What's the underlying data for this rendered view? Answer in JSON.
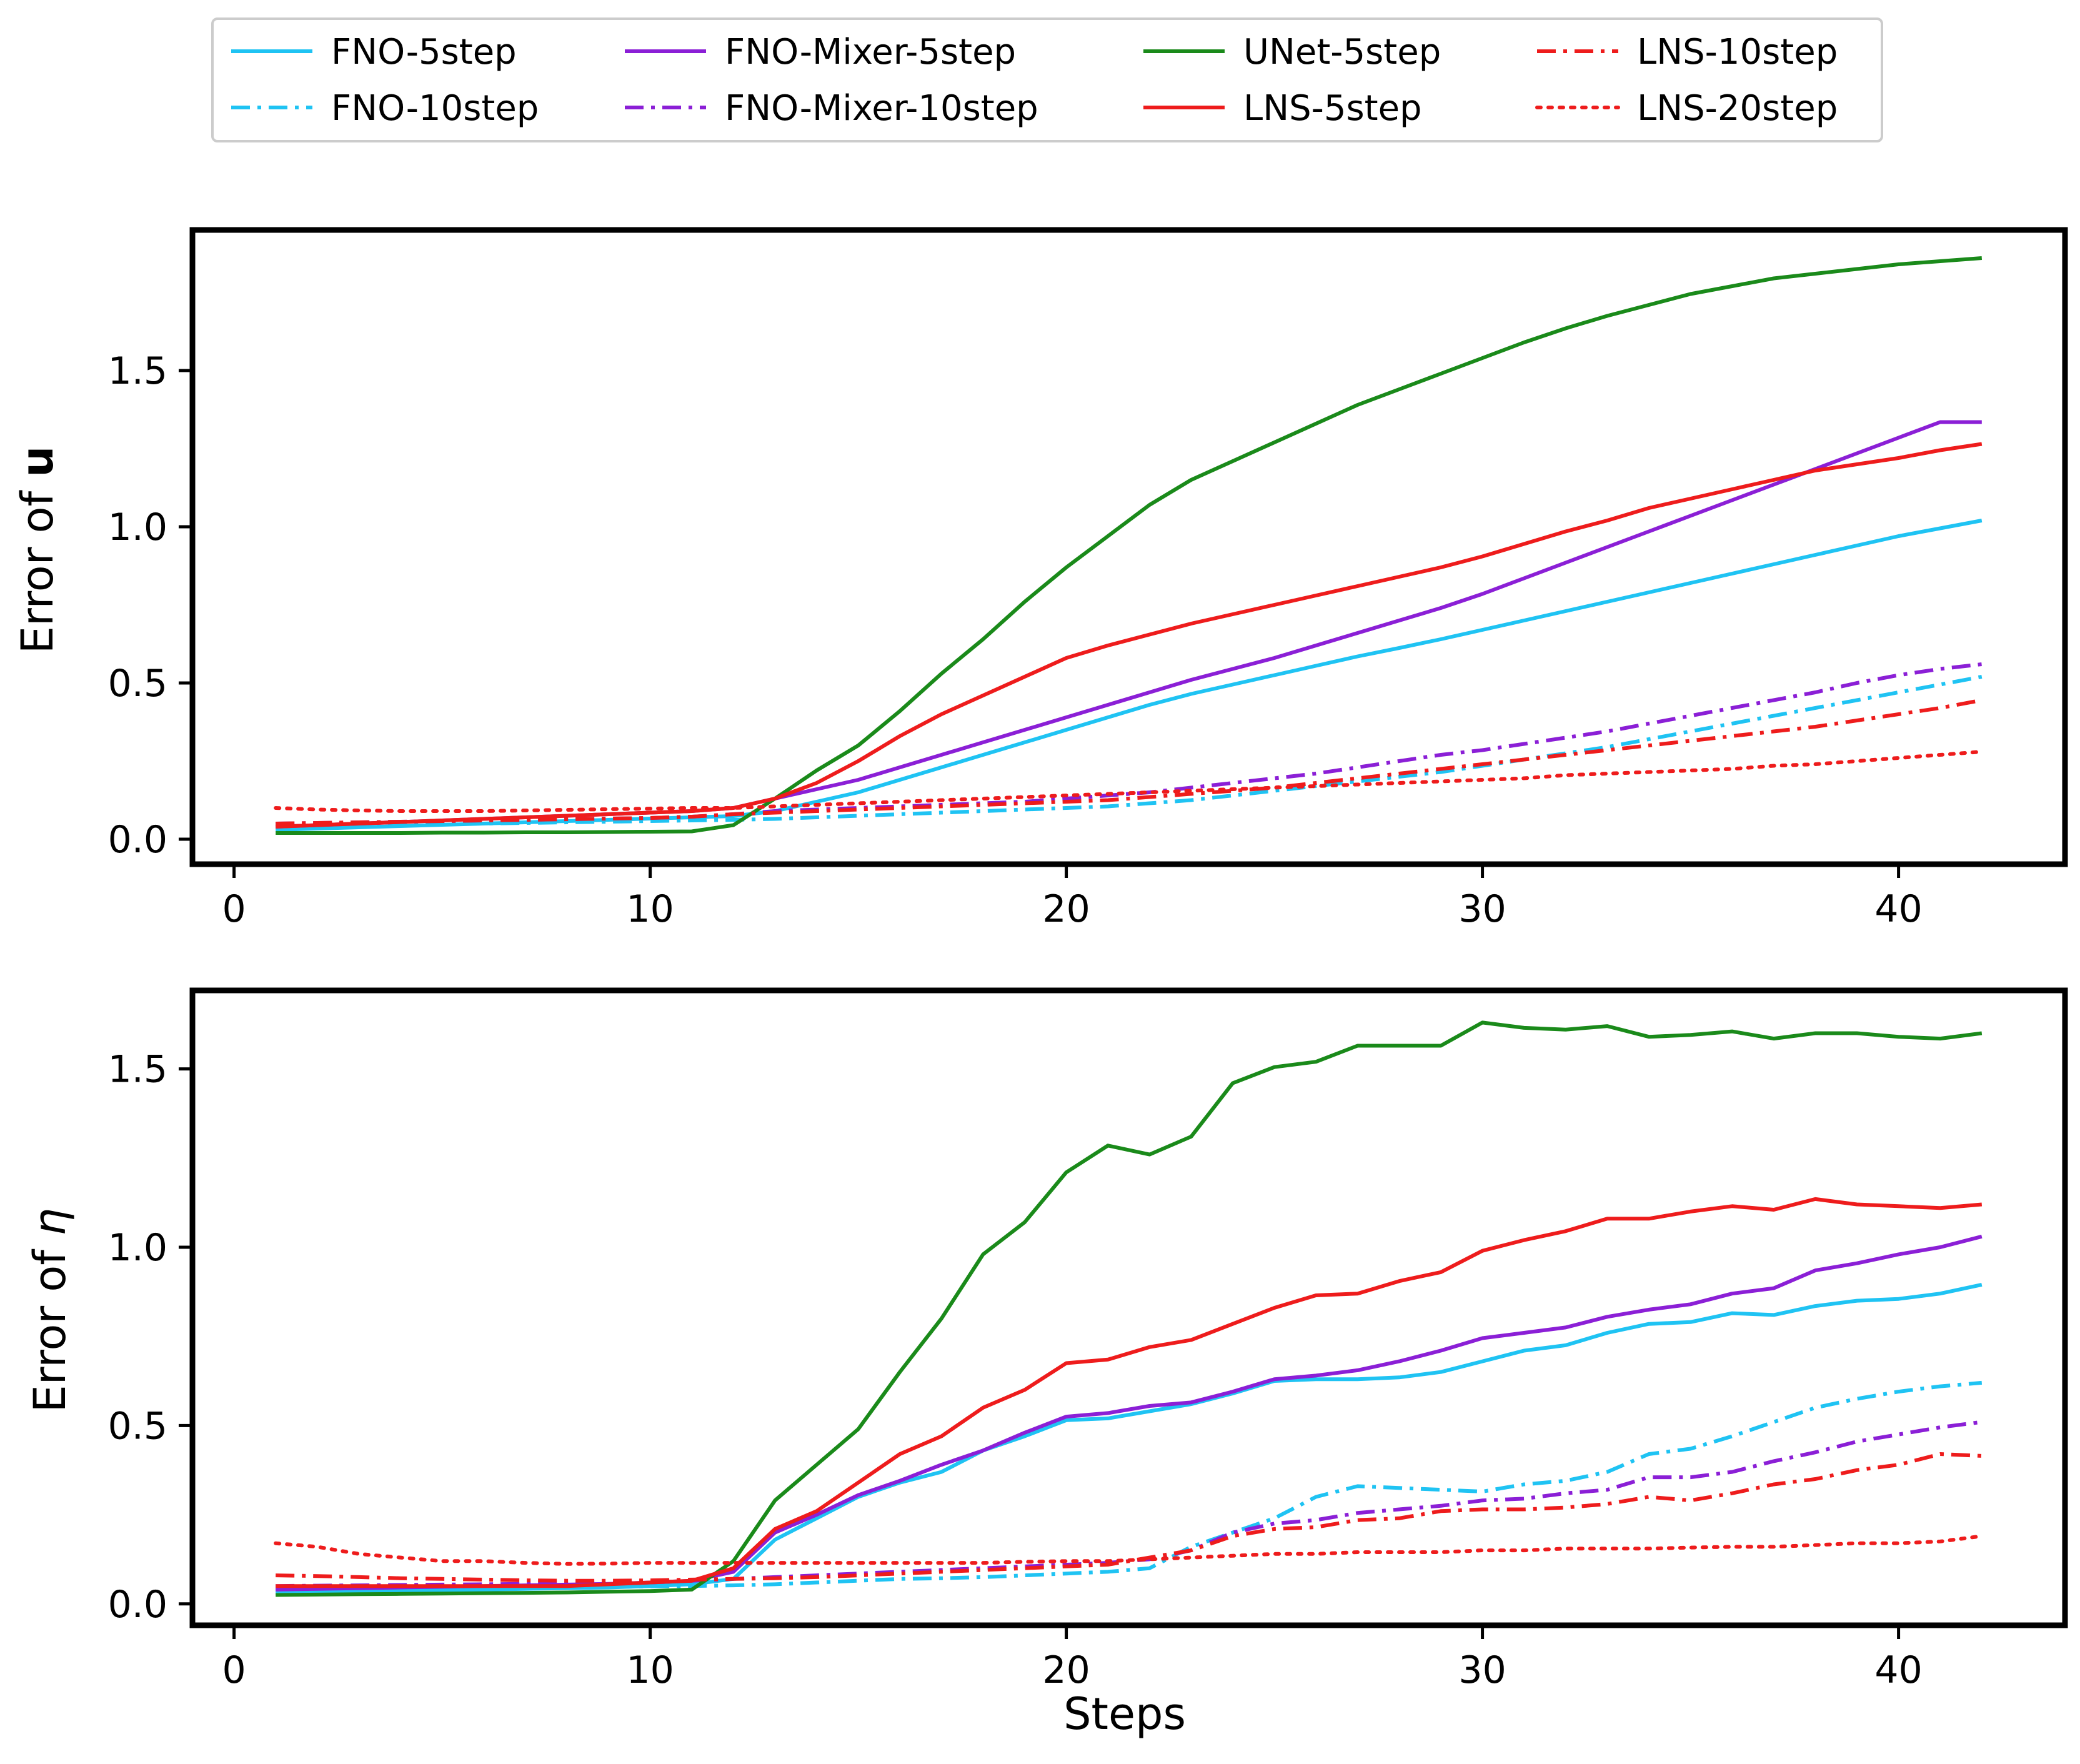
{
  "legend": {
    "entries": [
      {
        "key": "fno5",
        "label": "FNO-5step"
      },
      {
        "key": "fno10",
        "label": "FNO-10step"
      },
      {
        "key": "mix5",
        "label": "FNO-Mixer-5step"
      },
      {
        "key": "mix10",
        "label": "FNO-Mixer-10step"
      },
      {
        "key": "unet5",
        "label": "UNet-5step"
      },
      {
        "key": "lns5",
        "label": "LNS-5step"
      },
      {
        "key": "lns10",
        "label": "LNS-10step"
      },
      {
        "key": "lns20",
        "label": "LNS-20step"
      }
    ],
    "placement": "top-center, 4 columns"
  },
  "styles": {
    "fno5": {
      "color": "#1fc3f3",
      "dash": "solid"
    },
    "fno10": {
      "color": "#1fc3f3",
      "dash": "dashdot"
    },
    "mix5": {
      "color": "#8b1fd6",
      "dash": "solid"
    },
    "mix10": {
      "color": "#8b1fd6",
      "dash": "dashdot"
    },
    "unet5": {
      "color": "#1a8a1a",
      "dash": "solid"
    },
    "lns5": {
      "color": "#ee1c1c",
      "dash": "solid"
    },
    "lns10": {
      "color": "#ee1c1c",
      "dash": "dashdot"
    },
    "lns20": {
      "color": "#ee1c1c",
      "dash": "dotted"
    }
  },
  "chart_data": [
    {
      "type": "line",
      "title": "",
      "xlabel": "",
      "ylabel_prefix": "Error of ",
      "ylabel_symbol": "u",
      "xlim": [
        -1,
        44
      ],
      "ylim": [
        -0.08,
        1.95
      ],
      "xticks": [
        0,
        10,
        20,
        30,
        40
      ],
      "xtick_labels": [
        "0",
        "10",
        "20",
        "30",
        "40"
      ],
      "yticks": [
        0.0,
        0.5,
        1.0,
        1.5
      ],
      "ytick_labels": [
        "0.0",
        "0.5",
        "1.0",
        "1.5"
      ],
      "x_range": [
        1,
        42
      ],
      "series": [
        {
          "key": "fno5",
          "name": "FNO-5step",
          "values": [
            0.03,
            0.034,
            0.038,
            0.042,
            0.046,
            0.05,
            0.054,
            0.058,
            0.062,
            0.066,
            0.07,
            0.074,
            0.09,
            0.12,
            0.15,
            0.19,
            0.23,
            0.27,
            0.31,
            0.35,
            0.39,
            0.43,
            0.465,
            0.495,
            0.525,
            0.555,
            0.585,
            0.612,
            0.64,
            0.67,
            0.7,
            0.73,
            0.76,
            0.79,
            0.82,
            0.85,
            0.88,
            0.91,
            0.94,
            0.97,
            0.995,
            1.02
          ]
        },
        {
          "key": "fno10",
          "name": "FNO-10step",
          "values": [
            0.04,
            0.042,
            0.044,
            0.046,
            0.048,
            0.05,
            0.052,
            0.054,
            0.056,
            0.058,
            0.06,
            0.062,
            0.065,
            0.07,
            0.075,
            0.08,
            0.085,
            0.09,
            0.095,
            0.1,
            0.105,
            0.115,
            0.125,
            0.14,
            0.155,
            0.17,
            0.185,
            0.2,
            0.215,
            0.235,
            0.255,
            0.275,
            0.295,
            0.32,
            0.345,
            0.37,
            0.395,
            0.42,
            0.445,
            0.47,
            0.495,
            0.52
          ]
        },
        {
          "key": "mix5",
          "name": "FNO-Mixer-5step",
          "values": [
            0.04,
            0.045,
            0.05,
            0.055,
            0.06,
            0.065,
            0.07,
            0.075,
            0.08,
            0.085,
            0.09,
            0.1,
            0.13,
            0.16,
            0.19,
            0.23,
            0.27,
            0.31,
            0.35,
            0.39,
            0.43,
            0.47,
            0.51,
            0.545,
            0.58,
            0.62,
            0.66,
            0.7,
            0.74,
            0.785,
            0.835,
            0.885,
            0.935,
            0.985,
            1.035,
            1.085,
            1.135,
            1.185,
            1.235,
            1.285,
            1.335,
            1.335
          ]
        },
        {
          "key": "mix10",
          "name": "FNO-Mixer-10step",
          "values": [
            0.05,
            0.052,
            0.054,
            0.056,
            0.058,
            0.06,
            0.062,
            0.064,
            0.066,
            0.068,
            0.072,
            0.08,
            0.09,
            0.095,
            0.1,
            0.105,
            0.11,
            0.115,
            0.12,
            0.13,
            0.14,
            0.15,
            0.165,
            0.18,
            0.195,
            0.21,
            0.23,
            0.25,
            0.27,
            0.285,
            0.305,
            0.325,
            0.345,
            0.37,
            0.395,
            0.42,
            0.445,
            0.47,
            0.5,
            0.525,
            0.545,
            0.56
          ]
        },
        {
          "key": "unet5",
          "name": "UNet-5step",
          "values": [
            0.02,
            0.02,
            0.02,
            0.02,
            0.021,
            0.021,
            0.022,
            0.022,
            0.023,
            0.024,
            0.025,
            0.045,
            0.13,
            0.22,
            0.3,
            0.41,
            0.53,
            0.64,
            0.76,
            0.87,
            0.97,
            1.07,
            1.15,
            1.21,
            1.27,
            1.33,
            1.39,
            1.44,
            1.49,
            1.54,
            1.59,
            1.635,
            1.675,
            1.71,
            1.745,
            1.77,
            1.795,
            1.81,
            1.825,
            1.84,
            1.85,
            1.86
          ]
        },
        {
          "key": "lns5",
          "name": "LNS-5step",
          "values": [
            0.04,
            0.045,
            0.05,
            0.055,
            0.06,
            0.065,
            0.07,
            0.075,
            0.08,
            0.085,
            0.09,
            0.1,
            0.13,
            0.18,
            0.25,
            0.33,
            0.4,
            0.46,
            0.52,
            0.58,
            0.62,
            0.655,
            0.69,
            0.72,
            0.75,
            0.78,
            0.81,
            0.84,
            0.87,
            0.905,
            0.945,
            0.985,
            1.02,
            1.06,
            1.09,
            1.12,
            1.15,
            1.18,
            1.2,
            1.22,
            1.245,
            1.265
          ]
        },
        {
          "key": "lns10",
          "name": "LNS-10step",
          "values": [
            0.05,
            0.052,
            0.054,
            0.056,
            0.058,
            0.06,
            0.062,
            0.064,
            0.066,
            0.068,
            0.072,
            0.08,
            0.085,
            0.09,
            0.095,
            0.1,
            0.105,
            0.11,
            0.115,
            0.12,
            0.125,
            0.135,
            0.145,
            0.155,
            0.165,
            0.18,
            0.195,
            0.21,
            0.225,
            0.24,
            0.255,
            0.27,
            0.285,
            0.3,
            0.315,
            0.33,
            0.345,
            0.36,
            0.38,
            0.4,
            0.42,
            0.445
          ]
        },
        {
          "key": "lns20",
          "name": "LNS-20step",
          "values": [
            0.1,
            0.095,
            0.092,
            0.09,
            0.09,
            0.09,
            0.092,
            0.094,
            0.096,
            0.098,
            0.1,
            0.1,
            0.105,
            0.11,
            0.115,
            0.12,
            0.125,
            0.13,
            0.135,
            0.14,
            0.145,
            0.15,
            0.155,
            0.16,
            0.165,
            0.17,
            0.175,
            0.18,
            0.185,
            0.19,
            0.195,
            0.205,
            0.21,
            0.215,
            0.22,
            0.225,
            0.235,
            0.24,
            0.25,
            0.26,
            0.27,
            0.28
          ]
        }
      ]
    },
    {
      "type": "line",
      "title": "",
      "xlabel": "Steps",
      "ylabel_prefix": "Error of ",
      "ylabel_symbol": "η",
      "xlim": [
        -1,
        44
      ],
      "ylim": [
        -0.06,
        1.72
      ],
      "xticks": [
        0,
        10,
        20,
        30,
        40
      ],
      "xtick_labels": [
        "0",
        "10",
        "20",
        "30",
        "40"
      ],
      "yticks": [
        0.0,
        0.5,
        1.0,
        1.5
      ],
      "ytick_labels": [
        "0.0",
        "0.5",
        "1.0",
        "1.5"
      ],
      "x_range": [
        1,
        42
      ],
      "series": [
        {
          "key": "fno5",
          "name": "FNO-5step",
          "values": [
            0.03,
            0.032,
            0.034,
            0.036,
            0.038,
            0.04,
            0.042,
            0.044,
            0.046,
            0.05,
            0.055,
            0.07,
            0.18,
            0.24,
            0.3,
            0.34,
            0.37,
            0.43,
            0.47,
            0.515,
            0.52,
            0.54,
            0.56,
            0.59,
            0.625,
            0.63,
            0.63,
            0.635,
            0.65,
            0.68,
            0.71,
            0.725,
            0.76,
            0.785,
            0.79,
            0.815,
            0.81,
            0.835,
            0.85,
            0.855,
            0.87,
            0.895
          ]
        },
        {
          "key": "fno10",
          "name": "FNO-10step",
          "values": [
            0.04,
            0.041,
            0.042,
            0.043,
            0.044,
            0.045,
            0.046,
            0.047,
            0.048,
            0.049,
            0.05,
            0.052,
            0.055,
            0.06,
            0.065,
            0.07,
            0.072,
            0.075,
            0.08,
            0.085,
            0.09,
            0.1,
            0.16,
            0.2,
            0.24,
            0.3,
            0.33,
            0.325,
            0.32,
            0.315,
            0.335,
            0.345,
            0.37,
            0.42,
            0.435,
            0.47,
            0.51,
            0.55,
            0.575,
            0.595,
            0.61,
            0.62
          ]
        },
        {
          "key": "mix5",
          "name": "FNO-Mixer-5step",
          "values": [
            0.04,
            0.042,
            0.044,
            0.046,
            0.048,
            0.05,
            0.052,
            0.054,
            0.056,
            0.06,
            0.065,
            0.09,
            0.2,
            0.25,
            0.305,
            0.345,
            0.39,
            0.43,
            0.48,
            0.525,
            0.535,
            0.555,
            0.565,
            0.595,
            0.63,
            0.64,
            0.655,
            0.68,
            0.71,
            0.745,
            0.76,
            0.775,
            0.805,
            0.825,
            0.84,
            0.87,
            0.885,
            0.935,
            0.955,
            0.98,
            1.0,
            1.03
          ]
        },
        {
          "key": "mix10",
          "name": "FNO-Mixer-10step",
          "values": [
            0.05,
            0.051,
            0.052,
            0.053,
            0.054,
            0.055,
            0.056,
            0.057,
            0.058,
            0.06,
            0.065,
            0.07,
            0.075,
            0.08,
            0.085,
            0.09,
            0.095,
            0.1,
            0.105,
            0.11,
            0.115,
            0.125,
            0.15,
            0.2,
            0.225,
            0.235,
            0.255,
            0.265,
            0.275,
            0.29,
            0.295,
            0.31,
            0.32,
            0.355,
            0.355,
            0.37,
            0.4,
            0.425,
            0.455,
            0.475,
            0.495,
            0.51
          ]
        },
        {
          "key": "unet5",
          "name": "UNet-5step",
          "values": [
            0.025,
            0.026,
            0.027,
            0.028,
            0.029,
            0.03,
            0.031,
            0.032,
            0.034,
            0.036,
            0.04,
            0.12,
            0.29,
            0.39,
            0.49,
            0.65,
            0.8,
            0.98,
            1.07,
            1.21,
            1.285,
            1.26,
            1.31,
            1.46,
            1.505,
            1.52,
            1.565,
            1.565,
            1.565,
            1.63,
            1.615,
            1.61,
            1.62,
            1.59,
            1.595,
            1.605,
            1.585,
            1.6,
            1.6,
            1.59,
            1.585,
            1.6
          ]
        },
        {
          "key": "lns5",
          "name": "LNS-5step",
          "values": [
            0.05,
            0.05,
            0.05,
            0.05,
            0.05,
            0.05,
            0.05,
            0.05,
            0.055,
            0.06,
            0.065,
            0.1,
            0.21,
            0.26,
            0.34,
            0.42,
            0.47,
            0.55,
            0.6,
            0.675,
            0.685,
            0.72,
            0.74,
            0.785,
            0.83,
            0.865,
            0.87,
            0.905,
            0.93,
            0.99,
            1.02,
            1.045,
            1.08,
            1.08,
            1.1,
            1.115,
            1.105,
            1.135,
            1.12,
            1.115,
            1.11,
            1.12
          ]
        },
        {
          "key": "lns10",
          "name": "LNS-10step",
          "values": [
            0.08,
            0.078,
            0.075,
            0.072,
            0.07,
            0.068,
            0.066,
            0.065,
            0.065,
            0.066,
            0.068,
            0.07,
            0.072,
            0.075,
            0.08,
            0.085,
            0.09,
            0.095,
            0.1,
            0.105,
            0.11,
            0.13,
            0.15,
            0.19,
            0.21,
            0.215,
            0.235,
            0.24,
            0.26,
            0.265,
            0.265,
            0.27,
            0.28,
            0.3,
            0.29,
            0.31,
            0.335,
            0.35,
            0.375,
            0.39,
            0.42,
            0.415
          ]
        },
        {
          "key": "lns20",
          "name": "LNS-20step",
          "values": [
            0.17,
            0.16,
            0.14,
            0.13,
            0.12,
            0.12,
            0.115,
            0.112,
            0.113,
            0.115,
            0.115,
            0.115,
            0.115,
            0.115,
            0.115,
            0.115,
            0.115,
            0.115,
            0.118,
            0.12,
            0.12,
            0.125,
            0.13,
            0.135,
            0.14,
            0.14,
            0.145,
            0.145,
            0.145,
            0.15,
            0.15,
            0.155,
            0.155,
            0.155,
            0.158,
            0.16,
            0.16,
            0.165,
            0.17,
            0.17,
            0.175,
            0.19
          ]
        }
      ]
    }
  ]
}
